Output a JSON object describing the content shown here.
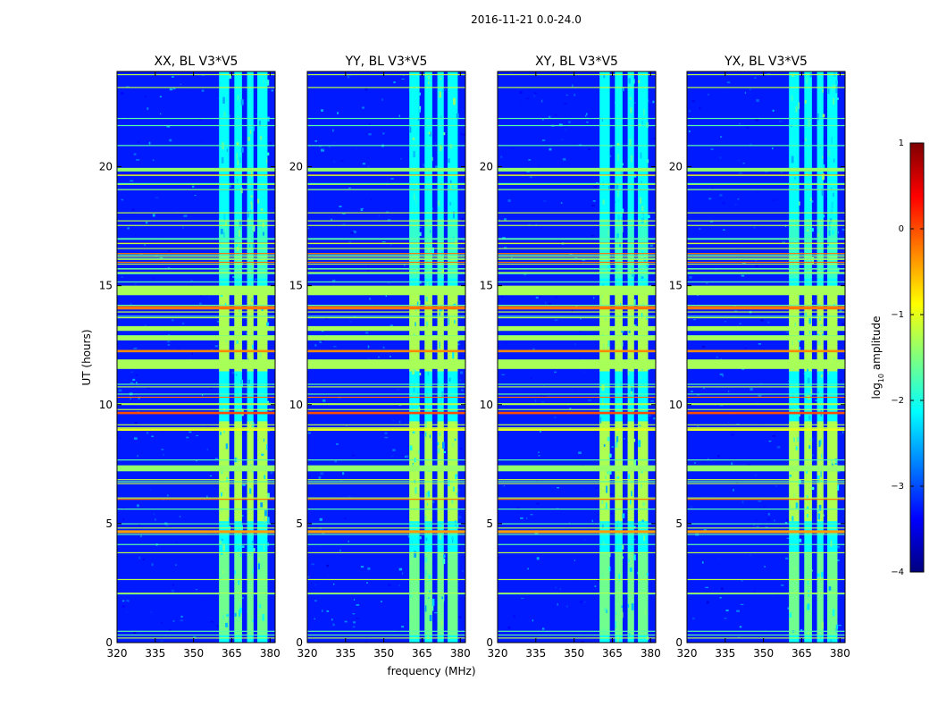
{
  "figure": {
    "suptitle": "2016-11-21 0.0-24.0",
    "xlabel": "frequency (MHz)",
    "ylabel": "UT (hours)"
  },
  "colorbar": {
    "label_prefix": "log",
    "label_sub": "10",
    "label_suffix": " amplitude",
    "ticks": [
      1,
      0,
      -1,
      -2,
      -3,
      -4
    ],
    "tick_labels": [
      "1",
      "0",
      "−1",
      "−2",
      "−3",
      "−4"
    ],
    "range": [
      -4,
      1
    ],
    "colormap": "jet",
    "colors": [
      "#00007f",
      "#0000ff",
      "#007fff",
      "#00ffff",
      "#7fff7f",
      "#ffff00",
      "#ff7f00",
      "#ff0000",
      "#7f0000"
    ]
  },
  "chart_data": {
    "type": "heatmap",
    "xlim": [
      320,
      382
    ],
    "ylim": [
      0,
      24
    ],
    "xticks": [
      320,
      335,
      350,
      365,
      380
    ],
    "yticks": [
      0,
      5,
      10,
      15,
      20
    ],
    "rfi_channel_blocks_mhz": [
      [
        360,
        364
      ],
      [
        366,
        369
      ],
      [
        371,
        373.5
      ],
      [
        375,
        379
      ]
    ],
    "panels": [
      {
        "title": "XX, BL V3*V5",
        "pol": "XX"
      },
      {
        "title": "YY, BL V3*V5",
        "pol": "YY"
      },
      {
        "title": "XY, BL V3*V5",
        "pol": "XY"
      },
      {
        "title": "YX, BL V3*V5",
        "pol": "YX"
      }
    ],
    "rfi_time_bands": [
      {
        "t0": 14.6,
        "t1": 15.0,
        "level": -1.3
      },
      {
        "t0": 13.1,
        "t1": 13.3,
        "level": -1.3
      },
      {
        "t0": 12.7,
        "t1": 12.9,
        "level": -1.3
      },
      {
        "t0": 11.5,
        "t1": 11.9,
        "level": -1.3
      },
      {
        "t0": 19.8,
        "t1": 19.95,
        "level": -1.4
      },
      {
        "t0": 7.2,
        "t1": 7.45,
        "level": -1.4
      },
      {
        "t0": 14.0,
        "t1": 14.1,
        "level": -0.2
      },
      {
        "t0": 12.2,
        "t1": 12.3,
        "level": -0.3
      },
      {
        "t0": 9.6,
        "t1": 9.7,
        "level": 0.0
      },
      {
        "t0": 4.6,
        "t1": 4.72,
        "level": -0.4
      },
      {
        "t0": 8.9,
        "t1": 9.0,
        "level": -1.0
      }
    ]
  }
}
